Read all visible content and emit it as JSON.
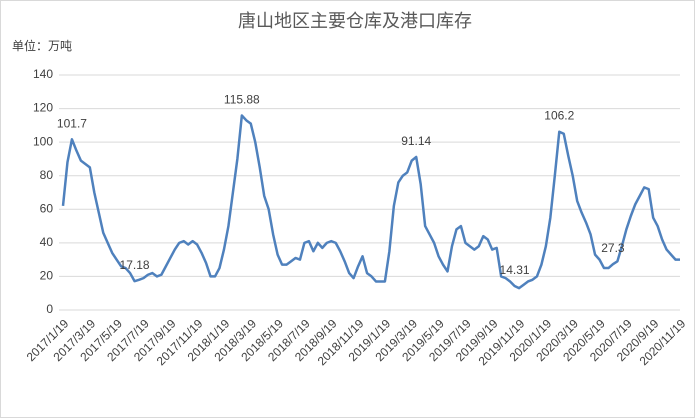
{
  "chart_data": {
    "type": "line",
    "title": "唐山地区主要仓库及港口库存",
    "unit_label": "单位：万吨",
    "color": "#4f81bd",
    "ylim": [
      0,
      140
    ],
    "yticks": [
      0,
      20,
      40,
      60,
      80,
      100,
      120,
      140
    ],
    "categories": [
      "2017/1/19",
      null,
      null,
      null,
      null,
      null,
      "2017/3/19",
      null,
      null,
      null,
      null,
      null,
      "2017/5/19",
      null,
      null,
      null,
      null,
      null,
      "2017/7/19",
      null,
      null,
      null,
      null,
      null,
      "2017/9/19",
      null,
      null,
      null,
      null,
      null,
      "2017/11/19",
      null,
      null,
      null,
      null,
      null,
      "2018/1/19",
      null,
      null,
      null,
      null,
      null,
      "2018/3/19",
      null,
      null,
      null,
      null,
      null,
      "2018/5/19",
      null,
      null,
      null,
      null,
      null,
      "2018/7/19",
      null,
      null,
      null,
      null,
      null,
      "2018/9/19",
      null,
      null,
      null,
      null,
      null,
      "2018/11/19",
      null,
      null,
      null,
      null,
      null,
      "2019/1/19",
      null,
      null,
      null,
      null,
      null,
      "2019/3/19",
      null,
      null,
      null,
      null,
      null,
      "2019/5/19",
      null,
      null,
      null,
      null,
      null,
      "2019/7/19",
      null,
      null,
      null,
      null,
      null,
      "2019/9/19",
      null,
      null,
      null,
      null,
      null,
      "2019/11/19",
      null,
      null,
      null,
      null,
      null,
      "2020/1/19",
      null,
      null,
      null,
      null,
      null,
      "2020/3/19",
      null,
      null,
      null,
      null,
      null,
      "2020/5/19",
      null,
      null,
      null,
      null,
      null,
      "2020/7/19",
      null,
      null,
      null,
      null,
      null,
      "2020/9/19",
      null,
      null,
      null,
      null,
      null,
      "2020/11/19"
    ],
    "values": [
      62,
      88,
      101.7,
      95,
      89,
      87,
      85,
      70,
      58,
      46,
      40,
      34,
      30,
      26,
      25,
      22,
      17.18,
      18,
      19,
      21,
      22,
      20,
      21,
      26,
      31,
      36,
      40,
      41,
      39,
      41,
      39,
      34,
      28,
      20,
      20,
      25,
      36,
      50,
      70,
      90,
      115.88,
      113,
      111,
      100,
      85,
      68,
      60,
      45,
      33,
      27,
      27,
      29,
      31,
      30,
      40,
      41,
      35,
      40,
      37,
      40,
      41,
      40,
      35,
      29,
      22,
      19,
      26,
      32,
      22,
      20,
      17,
      17,
      17,
      35,
      62,
      76,
      80,
      82,
      89,
      91.14,
      75,
      50,
      45,
      40,
      32,
      27,
      23,
      38,
      48,
      50,
      40,
      38,
      36,
      38,
      44,
      42,
      36,
      37,
      20,
      19,
      17,
      14.31,
      13,
      15,
      17,
      18,
      20,
      27,
      38,
      55,
      80,
      106.2,
      105,
      92,
      80,
      65,
      58,
      52,
      45,
      33,
      30,
      25,
      25,
      27.3,
      29,
      38,
      48,
      56,
      63,
      68,
      73,
      72,
      55,
      50,
      42,
      36,
      33,
      30,
      30
    ],
    "value_labels": [
      null,
      null,
      "101.7",
      null,
      null,
      null,
      null,
      null,
      null,
      null,
      null,
      null,
      null,
      null,
      null,
      null,
      "17.18",
      null,
      null,
      null,
      null,
      null,
      null,
      null,
      null,
      null,
      null,
      null,
      null,
      null,
      null,
      null,
      null,
      null,
      null,
      null,
      null,
      null,
      null,
      null,
      "115.88",
      null,
      null,
      null,
      null,
      null,
      null,
      null,
      null,
      null,
      null,
      null,
      null,
      null,
      null,
      null,
      null,
      null,
      null,
      null,
      null,
      null,
      null,
      null,
      null,
      null,
      null,
      null,
      null,
      null,
      null,
      null,
      null,
      null,
      null,
      null,
      null,
      null,
      null,
      "91.14",
      null,
      null,
      null,
      null,
      null,
      null,
      null,
      null,
      null,
      null,
      null,
      null,
      null,
      null,
      null,
      null,
      null,
      null,
      null,
      null,
      null,
      "14.31",
      null,
      null,
      null,
      null,
      null,
      null,
      null,
      null,
      null,
      "106.2",
      null,
      null,
      null,
      null,
      null,
      null,
      null,
      null,
      null,
      null,
      null,
      "27.3",
      null,
      null,
      null,
      null,
      null,
      null,
      null,
      null,
      null,
      null,
      null,
      null,
      null,
      null,
      null
    ],
    "grid": true
  }
}
